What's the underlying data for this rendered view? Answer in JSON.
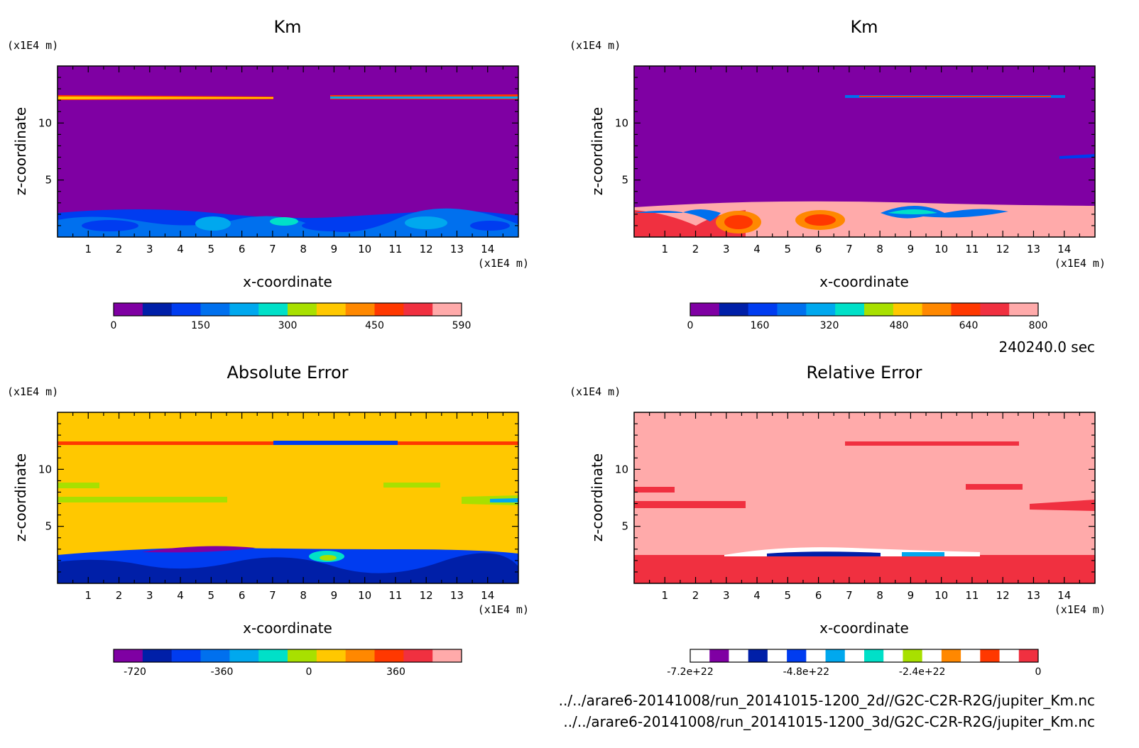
{
  "palette_rainbow": [
    "#7f00a3",
    "#001fa8",
    "#003cf0",
    "#0070ee",
    "#00a8ee",
    "#00e0c8",
    "#a8e000",
    "#ffc800",
    "#ff8800",
    "#ff3800",
    "#f03040",
    "#ffaaaa"
  ],
  "time_label": "240240.0 sec",
  "file_lines": [
    "../../arare6-20141008/run_20141015-1200_2d//G2C-C2R-R2G/jupiter_Km.nc",
    "../../arare6-20141008/run_20141015-1200_3d/G2C-C2R-R2G/jupiter_Km.nc"
  ],
  "chart_data": [
    {
      "type": "heatmap",
      "title": "Km",
      "xlabel": "x-coordinate",
      "ylabel": "z-coordinate",
      "x_unit": "(x1E4 m)",
      "y_unit": "(x1E4 m)",
      "xlim": [
        0,
        15
      ],
      "ylim": [
        0,
        15
      ],
      "x_ticks": [
        "1",
        "2",
        "3",
        "4",
        "5",
        "6",
        "7",
        "8",
        "9",
        "10",
        "11",
        "12",
        "13",
        "14"
      ],
      "y_ticks": [
        "5",
        "10"
      ],
      "background": "#7f00a3",
      "colorbar": {
        "colors": [
          "#7f00a3",
          "#001fa8",
          "#003cf0",
          "#0070ee",
          "#00a8ee",
          "#00e0c8",
          "#a8e000",
          "#ffc800",
          "#ff8800",
          "#ff3800",
          "#f03040",
          "#ffaaaa"
        ],
        "labels": [
          "0",
          "150",
          "300",
          "450",
          "590"
        ]
      }
    },
    {
      "type": "heatmap",
      "title": "Km",
      "xlabel": "x-coordinate",
      "ylabel": "z-coordinate",
      "x_unit": "(x1E4 m)",
      "y_unit": "(x1E4 m)",
      "xlim": [
        0,
        15
      ],
      "ylim": [
        0,
        15
      ],
      "x_ticks": [
        "1",
        "2",
        "3",
        "4",
        "5",
        "6",
        "7",
        "8",
        "9",
        "10",
        "11",
        "12",
        "13",
        "14"
      ],
      "y_ticks": [
        "5",
        "10"
      ],
      "background": "#7f00a3",
      "colorbar": {
        "colors": [
          "#7f00a3",
          "#001fa8",
          "#003cf0",
          "#0070ee",
          "#00a8ee",
          "#00e0c8",
          "#a8e000",
          "#ffc800",
          "#ff8800",
          "#ff3800",
          "#f03040",
          "#ffaaaa"
        ],
        "labels": [
          "0",
          "160",
          "320",
          "480",
          "640",
          "800"
        ]
      }
    },
    {
      "type": "heatmap",
      "title": "Absolute Error",
      "xlabel": "x-coordinate",
      "ylabel": "z-coordinate",
      "x_unit": "(x1E4 m)",
      "y_unit": "(x1E4 m)",
      "xlim": [
        0,
        15
      ],
      "ylim": [
        0,
        15
      ],
      "x_ticks": [
        "1",
        "2",
        "3",
        "4",
        "5",
        "6",
        "7",
        "8",
        "9",
        "10",
        "11",
        "12",
        "13",
        "14"
      ],
      "y_ticks": [
        "5",
        "10"
      ],
      "background": "#ffc800",
      "colorbar": {
        "colors": [
          "#7f00a3",
          "#001fa8",
          "#003cf0",
          "#0070ee",
          "#00a8ee",
          "#00e0c8",
          "#a8e000",
          "#ffc800",
          "#ff8800",
          "#ff3800",
          "#f03040",
          "#ffaaaa"
        ],
        "labels": [
          "-720",
          "-360",
          "0",
          "360"
        ]
      }
    },
    {
      "type": "heatmap",
      "title": "Relative Error",
      "xlabel": "x-coordinate",
      "ylabel": "z-coordinate",
      "x_unit": "(x1E4 m)",
      "y_unit": "(x1E4 m)",
      "xlim": [
        0,
        15
      ],
      "ylim": [
        0,
        15
      ],
      "x_ticks": [
        "1",
        "2",
        "3",
        "4",
        "5",
        "6",
        "7",
        "8",
        "9",
        "10",
        "11",
        "12",
        "13",
        "14"
      ],
      "y_ticks": [
        "5",
        "10"
      ],
      "background": "#ffaaaa",
      "colorbar": {
        "colors": [
          "#ffffff",
          "#7f00a3",
          "#ffffff",
          "#001fa8",
          "#ffffff",
          "#003cf0",
          "#ffffff",
          "#00a8ee",
          "#ffffff",
          "#00e0c8",
          "#ffffff",
          "#a8e000",
          "#ffffff",
          "#ff8800",
          "#ffffff",
          "#ff3800",
          "#ffffff",
          "#f03040"
        ],
        "labels": [
          "-7.2e+22",
          "-4.8e+22",
          "-2.4e+22",
          "0"
        ]
      }
    }
  ]
}
